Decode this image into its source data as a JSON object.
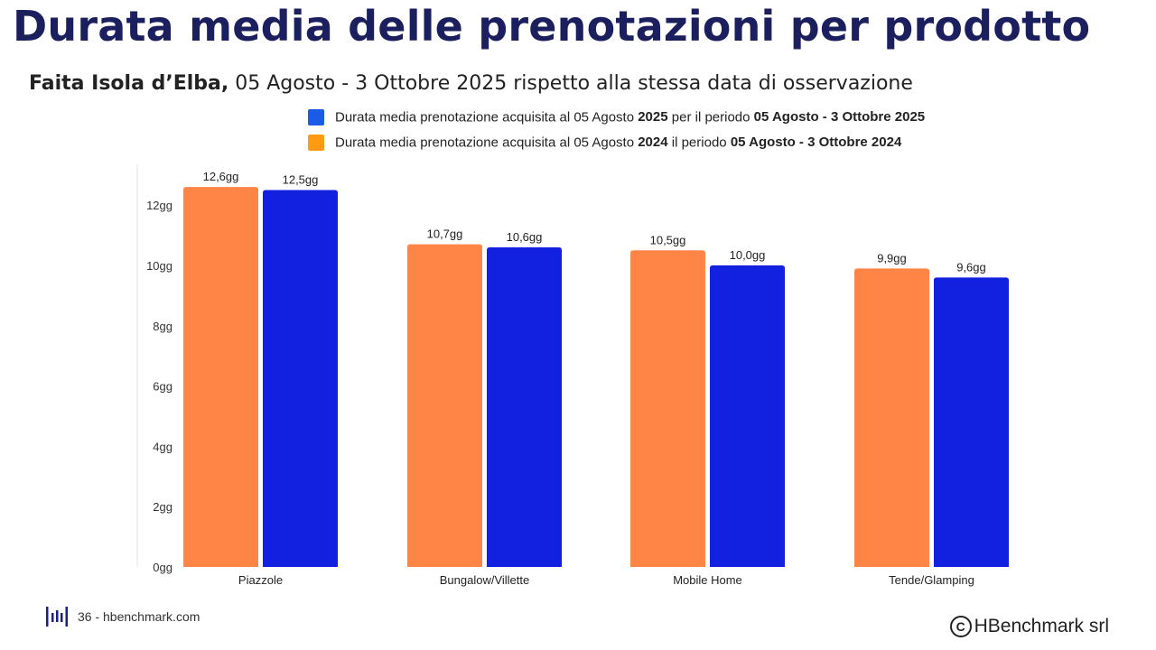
{
  "header": {
    "title": "Durata media delle prenotazioni per prodotto",
    "subtitle_bold": "Faita Isola d’Elba,",
    "subtitle_rest": " 05 Agosto - 3 Ottobre 2025 rispetto alla stessa data di osservazione"
  },
  "legend": {
    "s2025": {
      "pre": "Durata media prenotazione acquisita al 05 Agosto ",
      "year": "2025",
      "mid": " per il periodo ",
      "period": "05 Agosto - 3 Ottobre 2025",
      "color": "#1a5ce6"
    },
    "s2024": {
      "pre": "Durata media prenotazione acquisita al 05 Agosto ",
      "year": "2024",
      "mid": " il periodo ",
      "period": "05 Agosto - 3 Ottobre 2024",
      "color": "#ff9b12"
    }
  },
  "chart_data": {
    "type": "bar",
    "categories": [
      "Piazzole",
      "Bungalow/Villette",
      "Mobile Home",
      "Tende/Glamping"
    ],
    "series": [
      {
        "key": "2024",
        "color": "#ff8547",
        "values": [
          12.6,
          10.7,
          10.5,
          9.9
        ],
        "labels": [
          "12,6gg",
          "10,7gg",
          "10,5gg",
          "9,9gg"
        ]
      },
      {
        "key": "2025",
        "color": "#1221e0",
        "values": [
          12.5,
          10.6,
          10.0,
          9.6
        ],
        "labels": [
          "12,5gg",
          "10,6gg",
          "10,0gg",
          "9,6gg"
        ]
      }
    ],
    "yticks": [
      0,
      2,
      4,
      6,
      8,
      10,
      12
    ],
    "ytick_labels": [
      "0gg",
      "2gg",
      "4gg",
      "6gg",
      "8gg",
      "10gg",
      "12gg"
    ],
    "ylim": [
      0,
      13.3
    ],
    "grid": false,
    "legend_position": "top"
  },
  "footer": {
    "page_text": "36 - hbenchmark.com",
    "copyright_symbol": "C",
    "copyright_text": "HBenchmark srl"
  }
}
